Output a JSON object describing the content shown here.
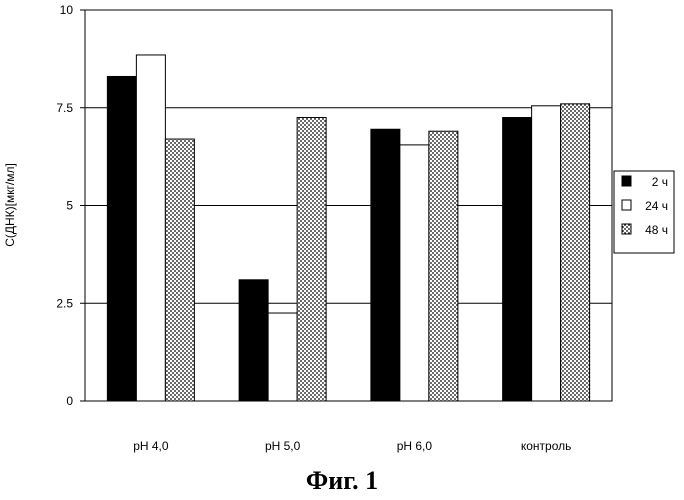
{
  "chart_data": {
    "type": "bar",
    "title": "",
    "ylabel": "C(ДНК)[мкг/мл]",
    "xlabel": "",
    "ylim": [
      0,
      10
    ],
    "yticks": [
      0,
      2.5,
      5,
      7.5,
      10
    ],
    "ytick_labels": [
      "0",
      "2.5",
      "5",
      "7.5",
      "10"
    ],
    "categories": [
      "pH 4,0",
      "pH 5,0",
      "pH 6,0",
      "контроль"
    ],
    "series": [
      {
        "name": "2 ч",
        "values": [
          8.3,
          3.1,
          6.95,
          7.25
        ],
        "fill": "solid",
        "color": "#000000"
      },
      {
        "name": "24 ч",
        "values": [
          8.85,
          2.25,
          6.55,
          7.55
        ],
        "fill": "white",
        "color": "#ffffff"
      },
      {
        "name": "48 ч",
        "values": [
          6.7,
          7.25,
          6.9,
          7.6
        ],
        "fill": "dotted",
        "color": "#777777"
      }
    ],
    "grid": true,
    "legend_position": "right"
  },
  "caption": "Фиг. 1"
}
